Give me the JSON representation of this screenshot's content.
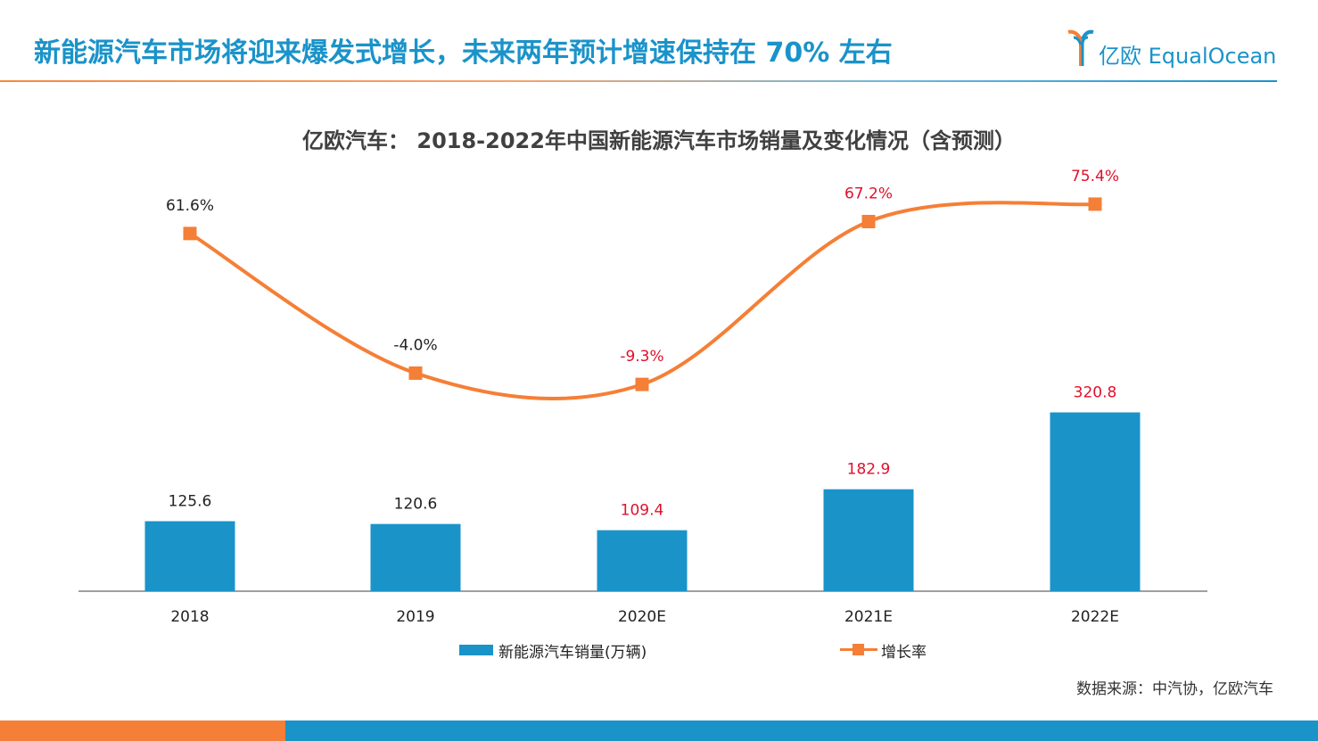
{
  "header": {
    "title": "新能源汽车市场将迎来爆发式增长，未来两年预计增速保持在 70% 左右",
    "logo_text": "亿欧 EqualOcean"
  },
  "chart_data": {
    "type": "bar",
    "title": "亿欧汽车： 2018-2022年中国新能源汽车市场销量及变化情况（含预测）",
    "categories": [
      "2018",
      "2019",
      "2020E",
      "2021E",
      "2022E"
    ],
    "series": [
      {
        "name": "新能源汽车销量(万辆)",
        "type": "bar",
        "values": [
          125.6,
          120.6,
          109.4,
          182.9,
          320.8
        ],
        "labels": [
          "125.6",
          "120.6",
          "109.4",
          "182.9",
          "320.8"
        ],
        "label_colors": [
          "#222222",
          "#222222",
          "#e0102b",
          "#e0102b",
          "#e0102b"
        ],
        "color": "#1a93c9"
      },
      {
        "name": "增长率",
        "type": "line",
        "values": [
          61.6,
          -4.0,
          -9.3,
          67.2,
          75.4
        ],
        "labels": [
          "61.6%",
          "-4.0%",
          "-9.3%",
          "67.2%",
          "75.4%"
        ],
        "label_colors": [
          "#222222",
          "#222222",
          "#e0102b",
          "#e0102b",
          "#e0102b"
        ],
        "color": "#f57f36"
      }
    ],
    "bar_axis_range": [
      0,
      450
    ],
    "line_axis_range": [
      -70,
      85
    ],
    "grid": false,
    "legend": "bottom"
  },
  "source": "数据来源：中汽协，亿欧汽车"
}
